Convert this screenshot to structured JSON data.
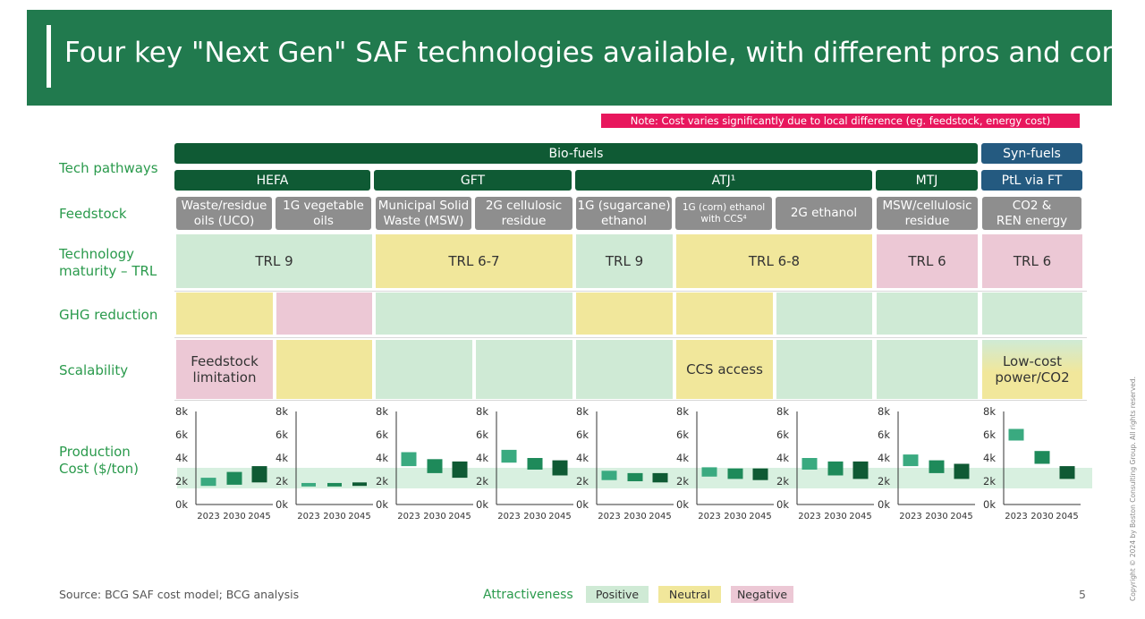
{
  "title": "Four key \"Next Gen\" SAF technologies available, with different pros and cons",
  "note": "Note: Cost varies significantly due to local difference (eg. feedstock, energy cost)",
  "row_labels": {
    "tech": "Tech pathways",
    "feedstock": "Feedstock",
    "trl": "Technology\nmaturity – TRL",
    "ghg": "GHG reduction",
    "scalability": "Scalability",
    "cost": "Production\nCost ($/ton)"
  },
  "groups": {
    "bio": "Bio-fuels",
    "syn": "Syn-fuels"
  },
  "pathways": {
    "hefa": "HEFA",
    "gft": "GFT",
    "atj": "ATJ¹",
    "mtj": "MTJ",
    "ptl": "PtL via FT"
  },
  "feedstocks": [
    "Waste/residue\noils (UCO)",
    "1G vegetable\noils",
    "Municipal Solid\nWaste (MSW)",
    "2G cellulosic\nresidue",
    "1G (sugarcane)\nethanol",
    "1G (corn) ethanol\nwith CCS⁴",
    "2G ethanol",
    "MSW/cellulosic\nresidue",
    "CO2 &\nREN energy"
  ],
  "trl": {
    "hefa": "TRL 9",
    "gft": "TRL 6-7",
    "atj1g": "TRL 9",
    "atjcorn": "TRL 6-8",
    "mtj": "TRL 6",
    "ptl": "TRL 6"
  },
  "ghg_ratings": [
    "neutral",
    "negative",
    "positive",
    "positive",
    "neutral",
    "neutral",
    "positive",
    "positive",
    "positive"
  ],
  "scalability": {
    "ratings": [
      "negative",
      "neutral",
      "positive",
      "positive",
      "positive",
      "neutral",
      "positive",
      "positive",
      "neutral"
    ],
    "hefa_note": "Feedstock\nlimitation",
    "atj_note": "CCS access",
    "ptl_note": "Low-cost\npower/CO2"
  },
  "colors": {
    "positive": "#cfead5",
    "neutral": "#f1e79b",
    "negative": "#ecc8d5",
    "dark_green": "#0f5a34",
    "mid_green": "#1e8a5a",
    "light_green": "#3aaa80"
  },
  "chart_data": {
    "type": "bar",
    "title": "Production Cost ($/ton)",
    "ylim": [
      0,
      8000
    ],
    "yticks": [
      "0k",
      "2k",
      "4k",
      "6k",
      "8k"
    ],
    "categories": [
      "2023",
      "2030",
      "2045"
    ],
    "series": [
      {
        "name": "Waste/residue oils (UCO)",
        "ranges": [
          [
            1600,
            2300
          ],
          [
            1700,
            2800
          ],
          [
            1900,
            3300
          ]
        ]
      },
      {
        "name": "1G vegetable oils",
        "ranges": [
          [
            1550,
            1850
          ],
          [
            1550,
            1850
          ],
          [
            1600,
            1900
          ]
        ]
      },
      {
        "name": "Municipal Solid Waste (MSW)",
        "ranges": [
          [
            3300,
            4500
          ],
          [
            2700,
            3900
          ],
          [
            2300,
            3700
          ]
        ]
      },
      {
        "name": "2G cellulosic residue",
        "ranges": [
          [
            3600,
            4700
          ],
          [
            3000,
            4000
          ],
          [
            2500,
            3800
          ]
        ]
      },
      {
        "name": "1G (sugarcane) ethanol",
        "ranges": [
          [
            2100,
            2900
          ],
          [
            2000,
            2700
          ],
          [
            1900,
            2700
          ]
        ]
      },
      {
        "name": "1G (corn) ethanol with CCS⁴",
        "ranges": [
          [
            2400,
            3200
          ],
          [
            2200,
            3100
          ],
          [
            2100,
            3100
          ]
        ]
      },
      {
        "name": "2G ethanol",
        "ranges": [
          [
            3000,
            4000
          ],
          [
            2500,
            3700
          ],
          [
            2200,
            3700
          ]
        ]
      },
      {
        "name": "MSW/cellulosic residue",
        "ranges": [
          [
            3300,
            4300
          ],
          [
            2700,
            3800
          ],
          [
            2200,
            3500
          ]
        ]
      },
      {
        "name": "CO2 & REN energy",
        "ranges": [
          [
            5500,
            6500
          ],
          [
            3500,
            4600
          ],
          [
            2200,
            3300
          ]
        ]
      }
    ]
  },
  "source": "Source: BCG SAF cost model; BCG analysis",
  "legend": {
    "title": "Attractiveness",
    "positive": "Positive",
    "neutral": "Neutral",
    "negative": "Negative"
  },
  "page_number": "5",
  "copyright": "Copyright © 2024 by Boston Consulting Group. All rights reserved."
}
